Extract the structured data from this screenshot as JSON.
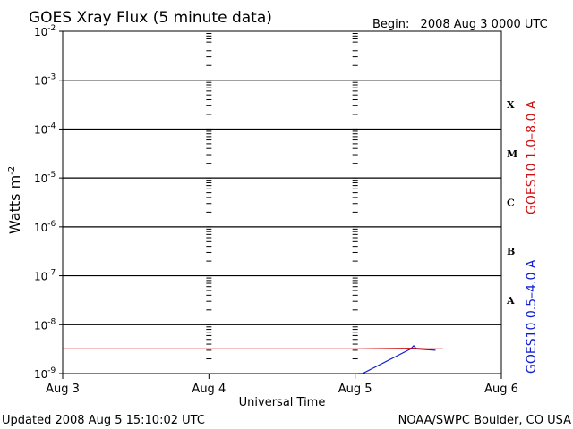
{
  "header": {
    "title": "GOES Xray Flux (5 minute data)",
    "begin_label": "Begin:",
    "begin_value": "2008 Aug 3 0000 UTC"
  },
  "footer": {
    "updated": "Updated 2008 Aug  5 15:10:02 UTC",
    "credit": "NOAA/SWPC Boulder, CO USA"
  },
  "chart_data": {
    "type": "line",
    "title": "GOES Xray Flux (5 minute data)",
    "xlabel": "Universal Time",
    "ylabel": "Watts m",
    "ylabel_sup": "-2",
    "x_unit": "days since Aug 3 0000 UTC",
    "xlim": [
      0,
      3
    ],
    "xticks": [
      {
        "label": "Aug 3",
        "value": 0
      },
      {
        "label": "Aug 4",
        "value": 1
      },
      {
        "label": "Aug 5",
        "value": 2
      },
      {
        "label": "Aug 6",
        "value": 3
      }
    ],
    "y_scale": "log",
    "ylim_exp": [
      -9,
      -2
    ],
    "yticks": [
      {
        "base": "10",
        "exp": "-9",
        "value_exp": -9
      },
      {
        "base": "10",
        "exp": "-8",
        "value_exp": -8
      },
      {
        "base": "10",
        "exp": "-7",
        "value_exp": -7
      },
      {
        "base": "10",
        "exp": "-6",
        "value_exp": -6
      },
      {
        "base": "10",
        "exp": "-5",
        "value_exp": -5
      },
      {
        "base": "10",
        "exp": "-4",
        "value_exp": -4
      },
      {
        "base": "10",
        "exp": "-3",
        "value_exp": -3
      },
      {
        "base": "10",
        "exp": "-2",
        "value_exp": -2
      }
    ],
    "horizontal_gridlines_exp": [
      -8,
      -7,
      -6,
      -5,
      -4,
      -3
    ],
    "flare_classes": [
      {
        "label": "A",
        "y_exp": -7.5
      },
      {
        "label": "B",
        "y_exp": -6.5
      },
      {
        "label": "C",
        "y_exp": -5.5
      },
      {
        "label": "M",
        "y_exp": -4.5
      },
      {
        "label": "X",
        "y_exp": -3.5
      }
    ],
    "series": [
      {
        "name": "GOES10 1.0–8.0 A",
        "color": "#d01010",
        "x": [
          0.0,
          2.0,
          2.4,
          2.5,
          2.6
        ],
        "y": [
          3.2e-09,
          3.2e-09,
          3.3e-09,
          3.2e-09,
          3.2e-09
        ]
      },
      {
        "name": "GOES10 0.5–4.0 A",
        "color": "#1020d0",
        "x": [
          2.02,
          2.05,
          2.38,
          2.4,
          2.42,
          2.55
        ],
        "y": [
          1e-09,
          1e-09,
          3.2e-09,
          3.7e-09,
          3.2e-09,
          3e-09
        ]
      }
    ],
    "grid": true,
    "legend_placement": "right-vertical"
  },
  "colors": {
    "long_channel": "#d01010",
    "short_channel": "#1020d0",
    "axes": "#000000"
  }
}
